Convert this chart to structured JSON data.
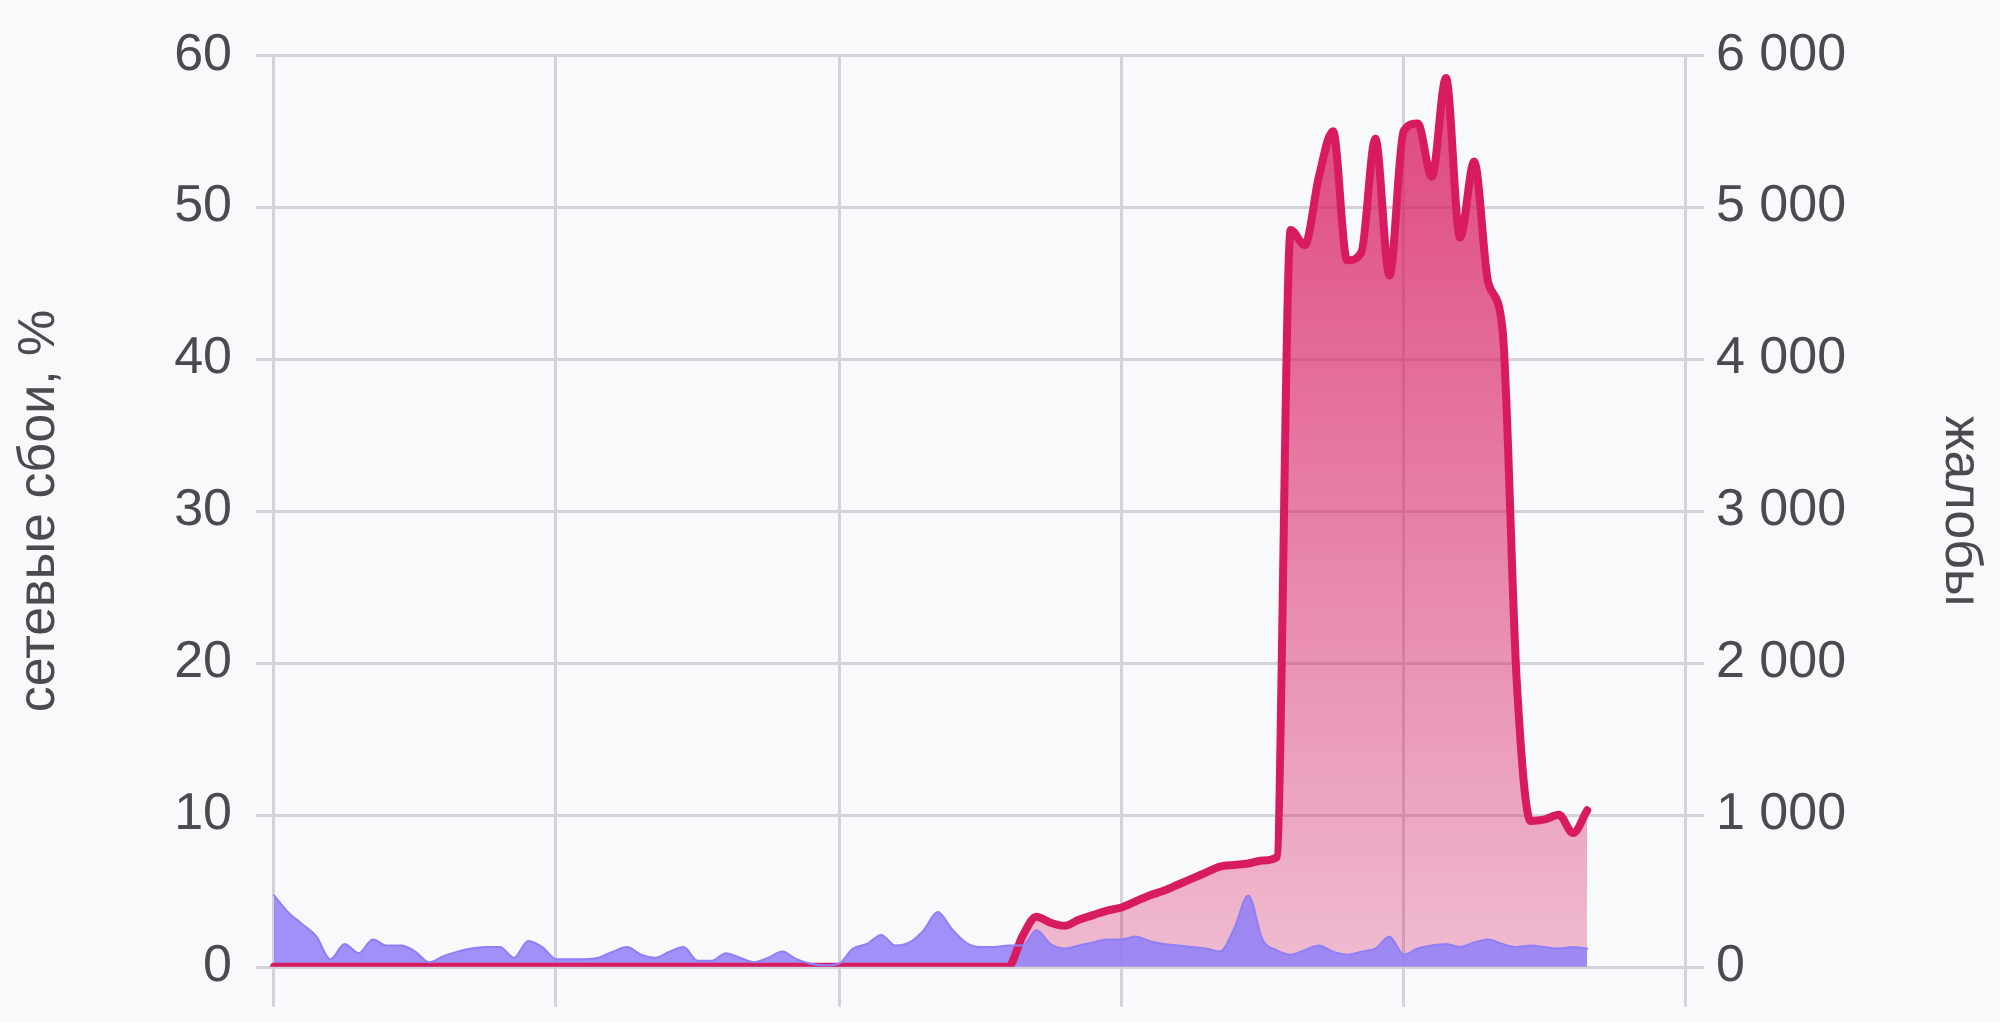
{
  "chart_data": {
    "type": "area",
    "categories": [
      null,
      null,
      null,
      null,
      null,
      null,
      null,
      null,
      null,
      null,
      null,
      null,
      null,
      null,
      null,
      null,
      null,
      null,
      null,
      null,
      null,
      null,
      null,
      null,
      null,
      null,
      null,
      null,
      null,
      null,
      null,
      null,
      null,
      null,
      null,
      null,
      null,
      null,
      null,
      null,
      null,
      null,
      null,
      null,
      null,
      null,
      null,
      null,
      null,
      null,
      null,
      null,
      null,
      null,
      null,
      null,
      null,
      null,
      null,
      null,
      null,
      null,
      null,
      null,
      null,
      null,
      null,
      null,
      null,
      null,
      null,
      null,
      null,
      null,
      null,
      null,
      null,
      null,
      null,
      null,
      null,
      null,
      null,
      null,
      null,
      null,
      null,
      null,
      null,
      null,
      null,
      null,
      null,
      null,
      null,
      null,
      null,
      null,
      null,
      null,
      null
    ],
    "series": [
      {
        "color": "#d81b60",
        "axis": "y2",
        "values": [
          0,
          0,
          0,
          0,
          0,
          0,
          0,
          0,
          0,
          0,
          0,
          0,
          0,
          0,
          0,
          0,
          0,
          0,
          0,
          0,
          0,
          0,
          0,
          0,
          0,
          0,
          0,
          0,
          0,
          0,
          0,
          0,
          0,
          0,
          0,
          0,
          0,
          0,
          0,
          0,
          0,
          0,
          0,
          0,
          0,
          0,
          0,
          0,
          0,
          0,
          0,
          0,
          0,
          200,
          330,
          290,
          270,
          310,
          340,
          370,
          390,
          430,
          470,
          500,
          540,
          580,
          620,
          660,
          670,
          680,
          700,
          720,
          4850,
          4750,
          5200,
          5500,
          4650,
          4700,
          5450,
          4550,
          5500,
          5550,
          5200,
          5850,
          4800,
          5300,
          4500,
          4200,
          1900,
          960,
          970,
          1000,
          880,
          1030,
          null,
          null,
          null,
          null,
          null,
          null,
          null
        ]
      },
      {
        "color": "#8f7ff7",
        "values": [
          4.7,
          3.6,
          2.8,
          2.0,
          0.5,
          1.5,
          0.9,
          1.8,
          1.4,
          1.4,
          1.0,
          0.3,
          0.7,
          1.0,
          1.2,
          1.3,
          1.3,
          0.6,
          1.7,
          1.3,
          0.5,
          0.5,
          0.5,
          0.6,
          1.0,
          1.3,
          0.8,
          0.6,
          1.0,
          1.3,
          0.4,
          0.4,
          0.9,
          0.6,
          0.3,
          0.6,
          1.0,
          0.5,
          0.2,
          0.1,
          0.2,
          1.2,
          1.5,
          2.1,
          1.4,
          1.6,
          2.4,
          3.6,
          2.5,
          1.6,
          1.3,
          1.3,
          1.4,
          1.4,
          2.4,
          1.5,
          1.2,
          1.4,
          1.6,
          1.8,
          1.8,
          2.0,
          1.7,
          1.5,
          1.4,
          1.3,
          1.2,
          1.0,
          2.5,
          4.7,
          1.8,
          1.1,
          0.8,
          1.1,
          1.4,
          1.0,
          0.8,
          1.0,
          1.2,
          2.0,
          0.8,
          1.2,
          1.4,
          1.5,
          1.3,
          1.6,
          1.8,
          1.5,
          1.3,
          1.4,
          1.3,
          1.2,
          1.3,
          1.2,
          null,
          null,
          null,
          null,
          null,
          null,
          null
        ]
      }
    ],
    "ylabel": "сетевые сбои, %",
    "y2label": "жалобы",
    "ylim": [
      0,
      60
    ],
    "yticks": [
      0,
      10,
      20,
      30,
      40,
      50,
      60
    ],
    "y2lim": [
      0,
      6000
    ],
    "y2ticks": [
      {
        "value": 0,
        "label": "0"
      },
      {
        "value": 1000,
        "label": "1 000"
      },
      {
        "value": 2000,
        "label": "2 000"
      },
      {
        "value": 3000,
        "label": "3 000"
      },
      {
        "value": 4000,
        "label": "4 000"
      },
      {
        "value": 5000,
        "label": "5 000"
      },
      {
        "value": 6000,
        "label": "6 000"
      }
    ],
    "grid": true,
    "tick_labels": "y"
  }
}
